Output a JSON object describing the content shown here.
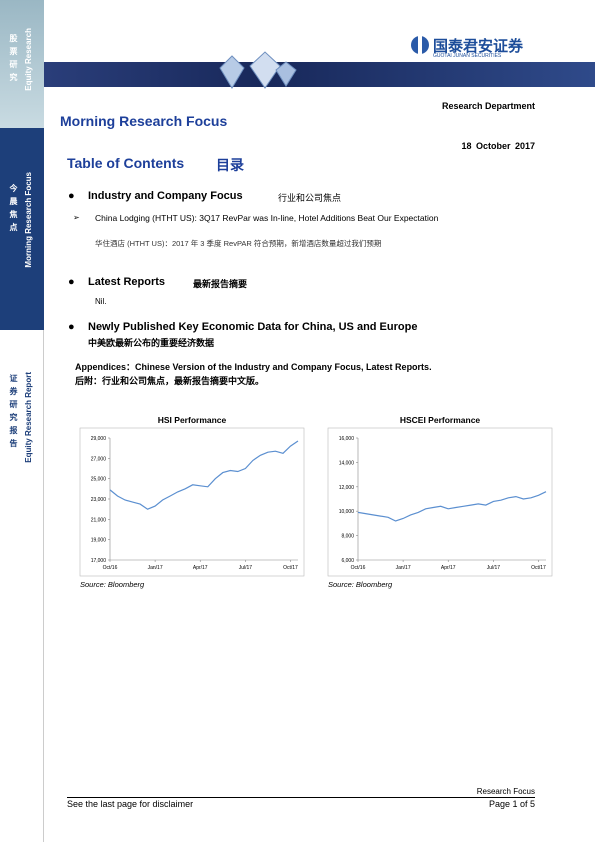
{
  "sidebar": {
    "block1": {
      "cn": "股票研究",
      "en": "Equity Research"
    },
    "block2": {
      "cn": "今晨焦点",
      "en": "Morning Research Focus"
    },
    "block3": {
      "cn": "证券研究报告",
      "en": "Equity Research Report"
    }
  },
  "header": {
    "logo_cn": "国泰君安证券",
    "logo_en": "GUOTAI JUNAN SECURITIES",
    "department": "Research Department",
    "title": "Morning Research Focus",
    "date": "18 October 2017"
  },
  "toc": {
    "title": "Table of Contents",
    "title_cn": "目录",
    "sections": [
      {
        "title": "Industry and Company Focus",
        "title_cn": "行业和公司焦点",
        "items": [
          "China Lodging (HTHT US): 3Q17 RevPar was In-line, Hotel Additions Beat Our Expectation"
        ],
        "item_cn": "华住酒店 (HTHT US)：2017 年 3 季度 RevPAR 符合预期，新增酒店数量超过我们预期"
      },
      {
        "title": "Latest Reports",
        "title_cn": "最新报告摘要",
        "note": "Nil."
      },
      {
        "title": "Newly Published Key Economic Data for China, US and Europe",
        "title_cn": "中美欧最新公布的重要经济数据"
      }
    ],
    "appendix": "Appendices：Chinese Version of the Industry and Company Focus, Latest Reports.",
    "appendix_cn": "后附：行业和公司焦点，最新报告摘要中文版。"
  },
  "chart_data": [
    {
      "type": "line",
      "title": "HSI Performance",
      "source": "Source: Bloomberg",
      "color": "#5b8fd0",
      "x": [
        0,
        0.5,
        1,
        1.5,
        2,
        2.5,
        3,
        3.5,
        4,
        4.5,
        5,
        5.5,
        6,
        6.5,
        7,
        7.5,
        8,
        8.5,
        9,
        9.5,
        10,
        10.5,
        11,
        11.5,
        12,
        12.5
      ],
      "values": [
        23900,
        23300,
        22900,
        22700,
        22500,
        22000,
        22300,
        22900,
        23300,
        23700,
        24000,
        24400,
        24300,
        24200,
        25000,
        25600,
        25800,
        25700,
        26000,
        26800,
        27300,
        27600,
        27700,
        27500,
        28200,
        28700
      ],
      "xlim": [
        0,
        12.5
      ],
      "xticks": [
        {
          "value": 0,
          "label": "Oct/16"
        },
        {
          "value": 3,
          "label": "Jan/17"
        },
        {
          "value": 6,
          "label": "Apr/17"
        },
        {
          "value": 9,
          "label": "Jul/17"
        },
        {
          "value": 12,
          "label": "Oct/17"
        }
      ],
      "ylim": [
        17000,
        29000
      ],
      "yticks": [
        {
          "value": 17000,
          "label": "17,000"
        },
        {
          "value": 19000,
          "label": "19,000"
        },
        {
          "value": 21000,
          "label": "21,000"
        },
        {
          "value": 23000,
          "label": "23,000"
        },
        {
          "value": 25000,
          "label": "25,000"
        },
        {
          "value": 27000,
          "label": "27,000"
        },
        {
          "value": 29000,
          "label": "29,000"
        }
      ]
    },
    {
      "type": "line",
      "title": "HSCEI Performance",
      "source": "Source: Bloomberg",
      "color": "#5b8fd0",
      "x": [
        0,
        0.5,
        1,
        1.5,
        2,
        2.5,
        3,
        3.5,
        4,
        4.5,
        5,
        5.5,
        6,
        6.5,
        7,
        7.5,
        8,
        8.5,
        9,
        9.5,
        10,
        10.5,
        11,
        11.5,
        12,
        12.5
      ],
      "values": [
        9900,
        9800,
        9700,
        9600,
        9500,
        9200,
        9400,
        9700,
        9900,
        10200,
        10300,
        10400,
        10200,
        10300,
        10400,
        10500,
        10600,
        10500,
        10800,
        10900,
        11100,
        11200,
        11000,
        11100,
        11300,
        11600
      ],
      "xlim": [
        0,
        12.5
      ],
      "xticks": [
        {
          "value": 0,
          "label": "Oct/16"
        },
        {
          "value": 3,
          "label": "Jan/17"
        },
        {
          "value": 6,
          "label": "Apr/17"
        },
        {
          "value": 9,
          "label": "Jul/17"
        },
        {
          "value": 12,
          "label": "Oct/17"
        }
      ],
      "ylim": [
        6000,
        16000
      ],
      "yticks": [
        {
          "value": 6000,
          "label": "6,000"
        },
        {
          "value": 8000,
          "label": "8,000"
        },
        {
          "value": 10000,
          "label": "10,000"
        },
        {
          "value": 12000,
          "label": "12,000"
        },
        {
          "value": 14000,
          "label": "14,000"
        },
        {
          "value": 16000,
          "label": "16,000"
        }
      ]
    }
  ],
  "footer": {
    "series": "Research Focus",
    "disclaimer": "See the last page for disclaimer",
    "page": "Page 1 of 5"
  }
}
